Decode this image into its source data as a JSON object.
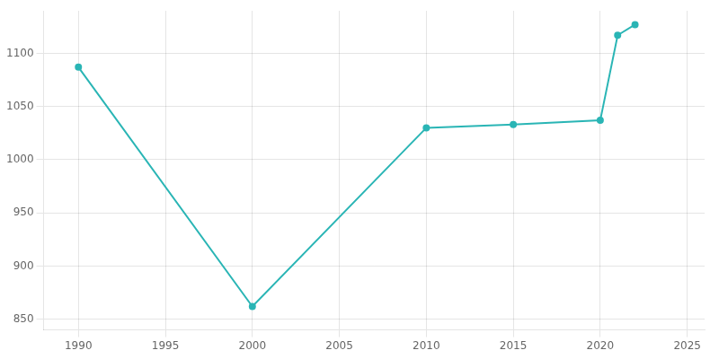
{
  "chart_data": {
    "type": "line",
    "x": [
      1990,
      2000,
      2010,
      2015,
      2020,
      2021,
      2022
    ],
    "values": [
      1087,
      862,
      1030,
      1033,
      1037,
      1117,
      1127
    ],
    "color": "#2ab5b5",
    "marker": "circle",
    "xlim": [
      1988,
      2026
    ],
    "ylim": [
      840,
      1140
    ],
    "xticks": [
      1990,
      1995,
      2000,
      2005,
      2010,
      2015,
      2020,
      2025
    ],
    "yticks": [
      850,
      900,
      950,
      1000,
      1050,
      1100
    ],
    "grid": true
  }
}
